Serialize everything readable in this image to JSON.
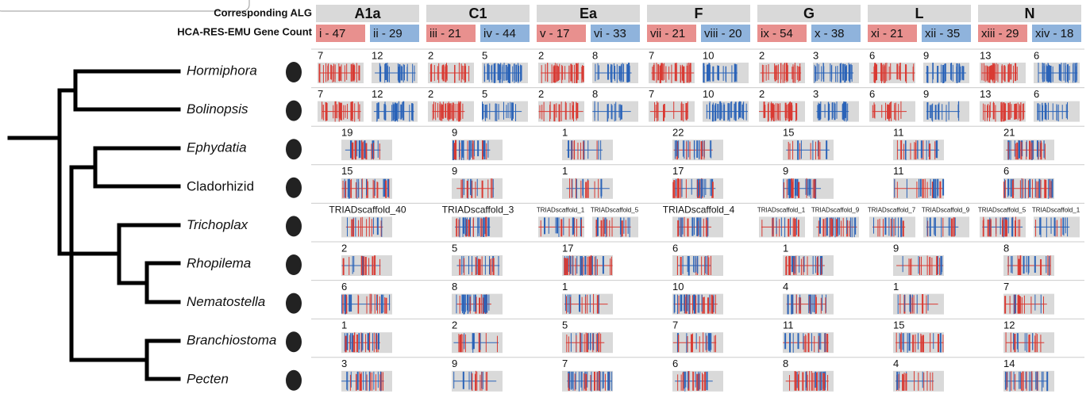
{
  "header": {
    "alg_label": "Corresponding ALG",
    "count_label": "HCA-RES-EMU Gene Count"
  },
  "algs": [
    {
      "name": "A1a",
      "counts": [
        "i - 47",
        "ii - 29"
      ]
    },
    {
      "name": "C1",
      "counts": [
        "iii - 21",
        "iv - 44"
      ]
    },
    {
      "name": "Ea",
      "counts": [
        "v - 17",
        "vi - 33"
      ]
    },
    {
      "name": "F",
      "counts": [
        "vii - 21",
        "viii - 20"
      ]
    },
    {
      "name": "G",
      "counts": [
        "ix - 54",
        "x - 38"
      ]
    },
    {
      "name": "L",
      "counts": [
        "xi - 21",
        "xii - 35"
      ]
    },
    {
      "name": "N",
      "counts": [
        "xiii - 29",
        "xiv - 18"
      ]
    }
  ],
  "species": [
    {
      "name": "Hormiphora",
      "italic": true,
      "cells": [
        [
          7,
          12
        ],
        [
          2,
          5
        ],
        [
          2,
          8
        ],
        [
          7,
          10
        ],
        [
          2,
          3
        ],
        [
          6,
          9
        ],
        [
          13,
          6
        ]
      ]
    },
    {
      "name": "Bolinopsis",
      "italic": true,
      "cells": [
        [
          7,
          12
        ],
        [
          2,
          5
        ],
        [
          2,
          8
        ],
        [
          7,
          10
        ],
        [
          2,
          3
        ],
        [
          6,
          9
        ],
        [
          13,
          6
        ]
      ]
    },
    {
      "name": "Ephydatia",
      "italic": true,
      "cells": [
        [
          19
        ],
        [
          9
        ],
        [
          1
        ],
        [
          22
        ],
        [
          15
        ],
        [
          11
        ],
        [
          21
        ]
      ]
    },
    {
      "name": "Cladorhizid",
      "italic": false,
      "cells": [
        [
          15
        ],
        [
          9
        ],
        [
          1
        ],
        [
          17
        ],
        [
          9
        ],
        [
          11
        ],
        [
          6
        ]
      ]
    },
    {
      "name": "Trichoplax",
      "italic": true,
      "cells": [
        [
          "TRIADscaffold_40"
        ],
        [
          "TRIADscaffold_3"
        ],
        [
          "TRIADscaffold_1",
          "TRIADscaffold_5"
        ],
        [
          "TRIADscaffold_4"
        ],
        [
          "TRIADscaffold_1",
          "TRIADscaffold_9"
        ],
        [
          "TRIADscaffold_7",
          "TRIADscaffold_9"
        ],
        [
          "TRIADscaffold_5",
          "TRIADscaffold_1"
        ]
      ]
    },
    {
      "name": "Rhopilema",
      "italic": true,
      "cells": [
        [
          2
        ],
        [
          5
        ],
        [
          17
        ],
        [
          6
        ],
        [
          1
        ],
        [
          9
        ],
        [
          8
        ]
      ]
    },
    {
      "name": "Nematostella",
      "italic": true,
      "cells": [
        [
          6
        ],
        [
          8
        ],
        [
          1
        ],
        [
          10
        ],
        [
          4
        ],
        [
          1
        ],
        [
          7
        ]
      ]
    },
    {
      "name": "Branchiostoma",
      "italic": true,
      "cells": [
        [
          1
        ],
        [
          2
        ],
        [
          5
        ],
        [
          7
        ],
        [
          11
        ],
        [
          15
        ],
        [
          12
        ]
      ]
    },
    {
      "name": "Pecten",
      "italic": true,
      "cells": [
        [
          3
        ],
        [
          9
        ],
        [
          7
        ],
        [
          6
        ],
        [
          8
        ],
        [
          4
        ],
        [
          14
        ]
      ]
    }
  ]
}
